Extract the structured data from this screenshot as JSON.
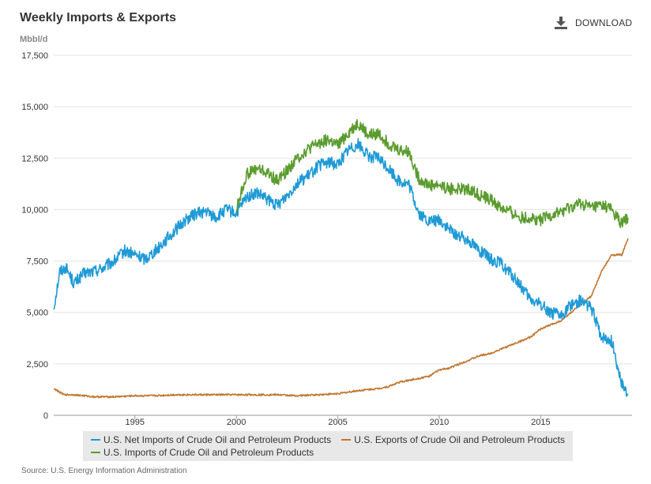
{
  "header": {
    "title": "Weekly Imports & Exports",
    "units": "Mbbl/d",
    "download_label": "DOWNLOAD",
    "download_icon": "download-icon"
  },
  "source": "Source: U.S. Energy Information Administration",
  "chart_data": {
    "type": "line",
    "title": "Weekly Imports & Exports",
    "xlabel": "",
    "ylabel": "Mbbl/d",
    "xlim": [
      1991,
      2019.5
    ],
    "ylim": [
      0,
      17500
    ],
    "x_ticks": [
      "1995",
      "2000",
      "2005",
      "2010",
      "2015"
    ],
    "y_ticks": [
      "0",
      "2,500",
      "5,000",
      "7,500",
      "10,000",
      "12,500",
      "15,000",
      "17,500"
    ],
    "grid": "horizontal",
    "legend_position": "bottom",
    "series": [
      {
        "name": "U.S. Net Imports of Crude Oil and Petroleum Products",
        "color": "#1f9ad6",
        "x": [
          1991.0,
          1991.3,
          1991.6,
          1992.0,
          1992.5,
          1993.0,
          1993.5,
          1994.0,
          1994.5,
          1995.0,
          1995.5,
          1996.0,
          1996.5,
          1997.0,
          1997.5,
          1998.0,
          1998.5,
          1999.0,
          1999.5,
          2000.0,
          2000.5,
          2001.0,
          2001.5,
          2002.0,
          2002.5,
          2003.0,
          2003.5,
          2004.0,
          2004.5,
          2005.0,
          2005.5,
          2006.0,
          2006.5,
          2007.0,
          2007.5,
          2008.0,
          2008.5,
          2009.0,
          2009.5,
          2010.0,
          2010.5,
          2011.0,
          2011.5,
          2012.0,
          2012.5,
          2013.0,
          2013.5,
          2014.0,
          2014.5,
          2015.0,
          2015.5,
          2016.0,
          2016.5,
          2017.0,
          2017.5,
          2018.0,
          2018.5,
          2019.0,
          2019.3
        ],
        "values": [
          5200,
          7000,
          7200,
          6400,
          6900,
          7000,
          7200,
          7500,
          8000,
          7800,
          7600,
          8000,
          8500,
          9000,
          9500,
          9800,
          9900,
          9600,
          10000,
          9800,
          10600,
          10800,
          10500,
          10200,
          10700,
          11300,
          11600,
          12100,
          12300,
          12200,
          12900,
          13200,
          12600,
          12500,
          12000,
          11400,
          11200,
          9800,
          9400,
          9500,
          9000,
          8700,
          8500,
          8000,
          7600,
          7400,
          6900,
          6300,
          5600,
          5400,
          5000,
          4800,
          5400,
          5600,
          5200,
          3800,
          3600,
          1500,
          1000
        ]
      },
      {
        "name": "U.S. Imports of Crude Oil and Petroleum Products",
        "color": "#5b9c2f",
        "x": [
          2000.0,
          2000.5,
          2001.0,
          2001.5,
          2002.0,
          2002.5,
          2003.0,
          2003.5,
          2004.0,
          2004.5,
          2005.0,
          2005.5,
          2006.0,
          2006.5,
          2007.0,
          2007.5,
          2008.0,
          2008.5,
          2009.0,
          2009.5,
          2010.0,
          2010.5,
          2011.0,
          2011.5,
          2012.0,
          2012.5,
          2013.0,
          2013.5,
          2014.0,
          2014.5,
          2015.0,
          2015.5,
          2016.0,
          2016.5,
          2017.0,
          2017.5,
          2018.0,
          2018.5,
          2019.0,
          2019.3
        ],
        "values": [
          10000,
          11700,
          12000,
          11800,
          11400,
          11900,
          12500,
          12900,
          13200,
          13400,
          13100,
          13700,
          14200,
          13600,
          13700,
          13200,
          12900,
          12800,
          11500,
          11200,
          11200,
          11000,
          11000,
          11000,
          10700,
          10500,
          10100,
          9900,
          9600,
          9600,
          9500,
          9700,
          9900,
          10100,
          10300,
          10100,
          10200,
          10000,
          9300,
          9600
        ]
      },
      {
        "name": "U.S. Exports of Crude Oil and Petroleum Products",
        "color": "#c0772f",
        "x": [
          1991.0,
          1991.5,
          1992.0,
          1993.0,
          1994.0,
          1995.0,
          1996.0,
          1997.0,
          1998.0,
          1999.0,
          2000.0,
          2001.0,
          2002.0,
          2003.0,
          2004.0,
          2005.0,
          2006.0,
          2006.5,
          2007.0,
          2007.5,
          2008.0,
          2008.5,
          2009.0,
          2009.5,
          2010.0,
          2010.5,
          2011.0,
          2011.5,
          2012.0,
          2012.5,
          2013.0,
          2013.5,
          2014.0,
          2014.5,
          2015.0,
          2015.5,
          2016.0,
          2016.5,
          2017.0,
          2017.5,
          2018.0,
          2018.5,
          2019.0,
          2019.3
        ],
        "values": [
          1300,
          1000,
          1000,
          900,
          900,
          950,
          950,
          1000,
          1000,
          1000,
          1000,
          1000,
          1000,
          950,
          1000,
          1050,
          1200,
          1250,
          1300,
          1400,
          1600,
          1700,
          1800,
          1900,
          2200,
          2300,
          2500,
          2700,
          2900,
          3000,
          3200,
          3400,
          3600,
          3800,
          4200,
          4400,
          4600,
          5000,
          5400,
          5800,
          7000,
          7800,
          7800,
          8600
        ]
      }
    ]
  }
}
